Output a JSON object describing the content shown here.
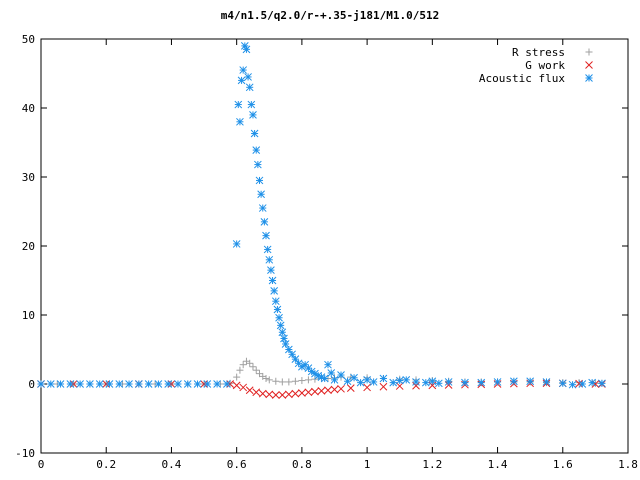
{
  "chart_data": {
    "type": "scatter",
    "title": "m4/n1.5/q2.0/r-+.35-j181/M1.0/512",
    "xlabel": "",
    "ylabel": "",
    "xlim": [
      0,
      1.8
    ],
    "ylim": [
      -10,
      50
    ],
    "x_ticks": [
      "0",
      "0.2",
      "0.4",
      "0.6",
      "0.8",
      "1",
      "1.2",
      "1.4",
      "1.6",
      "1.8"
    ],
    "y_ticks": [
      "-10",
      "0",
      "10",
      "20",
      "30",
      "40",
      "50"
    ],
    "grid": false,
    "legend_position": "top-right",
    "series": [
      {
        "name": "R stress",
        "color": "#a0a0a0",
        "marker": "plus",
        "points": [
          [
            0.0,
            0.0
          ],
          [
            0.05,
            0.0
          ],
          [
            0.1,
            0.0
          ],
          [
            0.15,
            0.0
          ],
          [
            0.2,
            0.0
          ],
          [
            0.25,
            0.0
          ],
          [
            0.3,
            0.0
          ],
          [
            0.35,
            0.0
          ],
          [
            0.4,
            0.0
          ],
          [
            0.45,
            0.0
          ],
          [
            0.5,
            0.0
          ],
          [
            0.55,
            0.0
          ],
          [
            0.58,
            0.1
          ],
          [
            0.6,
            1.0
          ],
          [
            0.61,
            2.0
          ],
          [
            0.62,
            2.8
          ],
          [
            0.63,
            3.3
          ],
          [
            0.64,
            3.0
          ],
          [
            0.65,
            2.5
          ],
          [
            0.66,
            2.0
          ],
          [
            0.67,
            1.5
          ],
          [
            0.68,
            1.1
          ],
          [
            0.69,
            0.8
          ],
          [
            0.7,
            0.6
          ],
          [
            0.72,
            0.4
          ],
          [
            0.74,
            0.3
          ],
          [
            0.76,
            0.3
          ],
          [
            0.78,
            0.4
          ],
          [
            0.8,
            0.5
          ],
          [
            0.82,
            0.6
          ],
          [
            0.84,
            0.7
          ],
          [
            0.86,
            0.8
          ],
          [
            0.88,
            0.8
          ],
          [
            0.9,
            0.9
          ],
          [
            0.92,
            1.0
          ],
          [
            0.95,
            1.0
          ],
          [
            1.0,
            0.9
          ],
          [
            1.05,
            0.8
          ],
          [
            1.1,
            0.7
          ],
          [
            1.15,
            0.6
          ],
          [
            1.2,
            0.5
          ],
          [
            1.25,
            0.4
          ],
          [
            1.3,
            0.3
          ],
          [
            1.35,
            0.3
          ],
          [
            1.4,
            0.3
          ],
          [
            1.45,
            0.3
          ],
          [
            1.5,
            0.3
          ],
          [
            1.55,
            0.2
          ],
          [
            1.6,
            0.2
          ],
          [
            1.65,
            0.2
          ],
          [
            1.7,
            0.1
          ],
          [
            1.72,
            0.1
          ]
        ]
      },
      {
        "name": "G work",
        "color": "#e02020",
        "marker": "cross",
        "points": [
          [
            0.0,
            0.0
          ],
          [
            0.1,
            0.0
          ],
          [
            0.2,
            0.0
          ],
          [
            0.3,
            0.0
          ],
          [
            0.4,
            0.0
          ],
          [
            0.5,
            0.0
          ],
          [
            0.58,
            0.0
          ],
          [
            0.6,
            -0.2
          ],
          [
            0.62,
            -0.5
          ],
          [
            0.64,
            -0.9
          ],
          [
            0.66,
            -1.2
          ],
          [
            0.68,
            -1.4
          ],
          [
            0.7,
            -1.5
          ],
          [
            0.72,
            -1.6
          ],
          [
            0.74,
            -1.6
          ],
          [
            0.76,
            -1.5
          ],
          [
            0.78,
            -1.4
          ],
          [
            0.8,
            -1.3
          ],
          [
            0.82,
            -1.2
          ],
          [
            0.84,
            -1.1
          ],
          [
            0.86,
            -1.0
          ],
          [
            0.88,
            -0.9
          ],
          [
            0.9,
            -0.8
          ],
          [
            0.92,
            -0.7
          ],
          [
            0.95,
            -0.6
          ],
          [
            1.0,
            -0.5
          ],
          [
            1.05,
            -0.4
          ],
          [
            1.1,
            -0.3
          ],
          [
            1.15,
            -0.25
          ],
          [
            1.2,
            -0.2
          ],
          [
            1.25,
            -0.15
          ],
          [
            1.3,
            -0.1
          ],
          [
            1.35,
            -0.05
          ],
          [
            1.4,
            0.0
          ],
          [
            1.45,
            0.05
          ],
          [
            1.5,
            0.1
          ],
          [
            1.55,
            0.1
          ],
          [
            1.6,
            0.1
          ],
          [
            1.65,
            0.05
          ],
          [
            1.7,
            0.0
          ],
          [
            1.72,
            0.0
          ]
        ]
      },
      {
        "name": "Acoustic flux",
        "color": "#1e90e8",
        "marker": "star",
        "points": [
          [
            0.0,
            0.0
          ],
          [
            0.03,
            0.0
          ],
          [
            0.06,
            0.0
          ],
          [
            0.09,
            0.0
          ],
          [
            0.12,
            0.0
          ],
          [
            0.15,
            0.0
          ],
          [
            0.18,
            0.0
          ],
          [
            0.21,
            0.0
          ],
          [
            0.24,
            0.0
          ],
          [
            0.27,
            0.0
          ],
          [
            0.3,
            0.0
          ],
          [
            0.33,
            0.0
          ],
          [
            0.36,
            0.0
          ],
          [
            0.39,
            0.0
          ],
          [
            0.42,
            0.0
          ],
          [
            0.45,
            0.0
          ],
          [
            0.48,
            0.0
          ],
          [
            0.51,
            0.0
          ],
          [
            0.54,
            0.0
          ],
          [
            0.57,
            0.0
          ],
          [
            0.6,
            20.3
          ],
          [
            0.605,
            40.5
          ],
          [
            0.61,
            38.0
          ],
          [
            0.615,
            44.0
          ],
          [
            0.62,
            45.5
          ],
          [
            0.625,
            49.0
          ],
          [
            0.63,
            48.5
          ],
          [
            0.635,
            44.5
          ],
          [
            0.64,
            43.0
          ],
          [
            0.645,
            40.5
          ],
          [
            0.65,
            39.0
          ],
          [
            0.655,
            36.3
          ],
          [
            0.66,
            33.9
          ],
          [
            0.665,
            31.8
          ],
          [
            0.67,
            29.5
          ],
          [
            0.675,
            27.5
          ],
          [
            0.68,
            25.5
          ],
          [
            0.685,
            23.5
          ],
          [
            0.69,
            21.5
          ],
          [
            0.695,
            19.5
          ],
          [
            0.7,
            18.0
          ],
          [
            0.705,
            16.5
          ],
          [
            0.71,
            15.0
          ],
          [
            0.715,
            13.5
          ],
          [
            0.72,
            12.0
          ],
          [
            0.725,
            10.8
          ],
          [
            0.73,
            9.6
          ],
          [
            0.735,
            8.5
          ],
          [
            0.74,
            7.5
          ],
          [
            0.745,
            6.6
          ],
          [
            0.75,
            5.8
          ],
          [
            0.76,
            5.0
          ],
          [
            0.77,
            4.3
          ],
          [
            0.78,
            3.6
          ],
          [
            0.79,
            3.0
          ],
          [
            0.8,
            2.5
          ],
          [
            0.81,
            2.8
          ],
          [
            0.82,
            2.3
          ],
          [
            0.83,
            1.8
          ],
          [
            0.84,
            1.5
          ],
          [
            0.85,
            1.2
          ],
          [
            0.86,
            1.0
          ],
          [
            0.87,
            0.8
          ],
          [
            0.88,
            2.8
          ],
          [
            0.89,
            1.6
          ],
          [
            0.9,
            0.6
          ],
          [
            0.92,
            1.3
          ],
          [
            0.94,
            0.4
          ],
          [
            0.96,
            0.9
          ],
          [
            0.98,
            0.2
          ],
          [
            1.0,
            0.6
          ],
          [
            1.02,
            0.3
          ],
          [
            1.05,
            0.8
          ],
          [
            1.08,
            0.2
          ],
          [
            1.1,
            0.5
          ],
          [
            1.12,
            0.6
          ],
          [
            1.15,
            0.3
          ],
          [
            1.18,
            0.2
          ],
          [
            1.2,
            0.4
          ],
          [
            1.22,
            0.1
          ],
          [
            1.25,
            0.3
          ],
          [
            1.3,
            0.2
          ],
          [
            1.35,
            0.2
          ],
          [
            1.4,
            0.3
          ],
          [
            1.45,
            0.4
          ],
          [
            1.5,
            0.4
          ],
          [
            1.55,
            0.3
          ],
          [
            1.6,
            0.1
          ],
          [
            1.63,
            -0.1
          ],
          [
            1.66,
            0.0
          ],
          [
            1.69,
            0.2
          ],
          [
            1.72,
            0.1
          ]
        ]
      }
    ]
  }
}
